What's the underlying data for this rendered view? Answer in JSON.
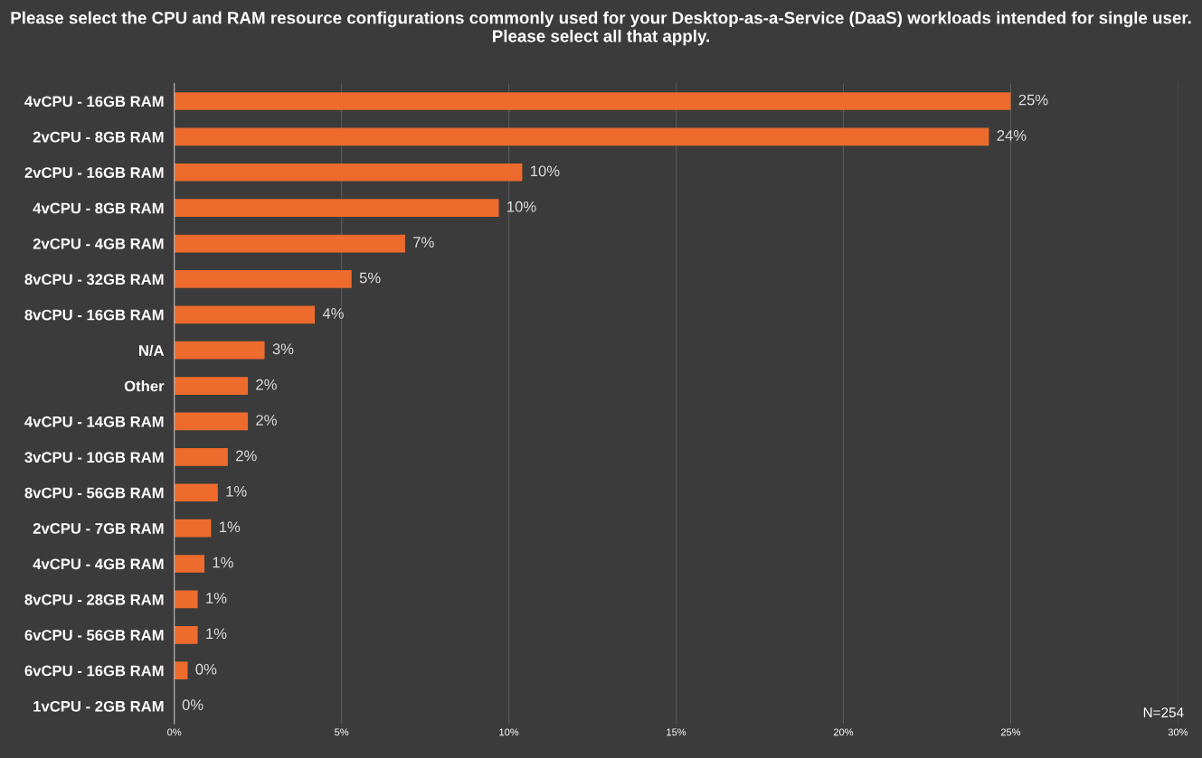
{
  "chart_data": {
    "type": "bar",
    "orientation": "horizontal",
    "title": "Please select the CPU and RAM resource configurations commonly used for your Desktop-as-a-Service (DaaS) workloads intended for single user. Please select all that apply.",
    "categories": [
      "4vCPU - 16GB RAM",
      "2vCPU - 8GB RAM",
      "2vCPU - 16GB RAM",
      "4vCPU - 8GB RAM",
      "2vCPU - 4GB RAM",
      "8vCPU - 32GB RAM",
      "8vCPU - 16GB RAM",
      "N/A",
      "Other",
      "4vCPU - 14GB RAM",
      "3vCPU - 10GB RAM",
      "8vCPU - 56GB RAM",
      "2vCPU - 7GB RAM",
      "4vCPU - 4GB RAM",
      "8vCPU - 28GB RAM",
      "6vCPU - 56GB RAM",
      "6vCPU - 16GB RAM",
      "1vCPU - 2GB RAM"
    ],
    "values": [
      25.0,
      24.35,
      10.4,
      9.7,
      6.9,
      5.3,
      4.2,
      2.7,
      2.2,
      2.2,
      1.6,
      1.3,
      1.1,
      0.9,
      0.7,
      0.7,
      0.4,
      0
    ],
    "value_labels": [
      "25%",
      "24%",
      "10%",
      "10%",
      "7%",
      "5%",
      "4%",
      "3%",
      "2%",
      "2%",
      "2%",
      "1%",
      "1%",
      "1%",
      "1%",
      "1%",
      "0%",
      "0%"
    ],
    "color": "#ed6b2d",
    "xlim": [
      0,
      30
    ],
    "xticks": [
      {
        "value": 0,
        "label": "0%"
      },
      {
        "value": 5,
        "label": "5%"
      },
      {
        "value": 10,
        "label": "10%"
      },
      {
        "value": 15,
        "label": "15%"
      },
      {
        "value": 20,
        "label": "20%"
      },
      {
        "value": 25,
        "label": "25%"
      },
      {
        "value": 30,
        "label": "30%"
      }
    ],
    "grid": "x",
    "annotations": [
      "N=254"
    ]
  }
}
